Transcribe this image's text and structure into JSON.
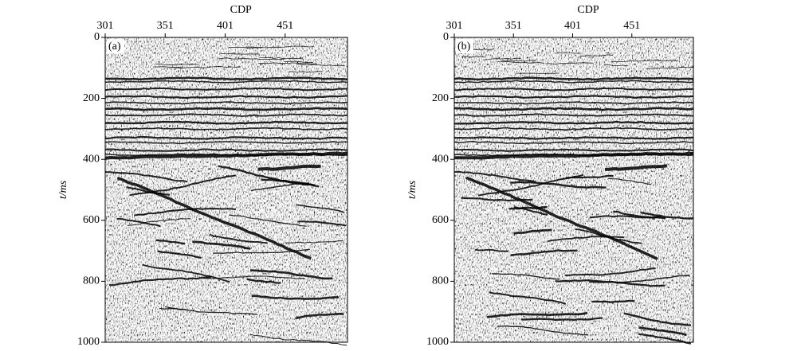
{
  "chart_data": [
    {
      "type": "seismic",
      "panel_label": "(a)",
      "x_label": "CDP",
      "y_label": "t/ms",
      "xlim": [
        301,
        503
      ],
      "xticks": [
        301,
        351,
        401,
        451
      ],
      "ylim": [
        0,
        1000
      ],
      "yticks": [
        0,
        200,
        400,
        600,
        800,
        1000
      ],
      "y_inverted": true
    },
    {
      "type": "seismic",
      "panel_label": "(b)",
      "x_label": "CDP",
      "y_label": "t/ms",
      "xlim": [
        301,
        503
      ],
      "xticks": [
        301,
        351,
        401,
        451
      ],
      "ylim": [
        0,
        1000
      ],
      "yticks": [
        0,
        200,
        400,
        600,
        800,
        1000
      ],
      "y_inverted": true
    }
  ]
}
